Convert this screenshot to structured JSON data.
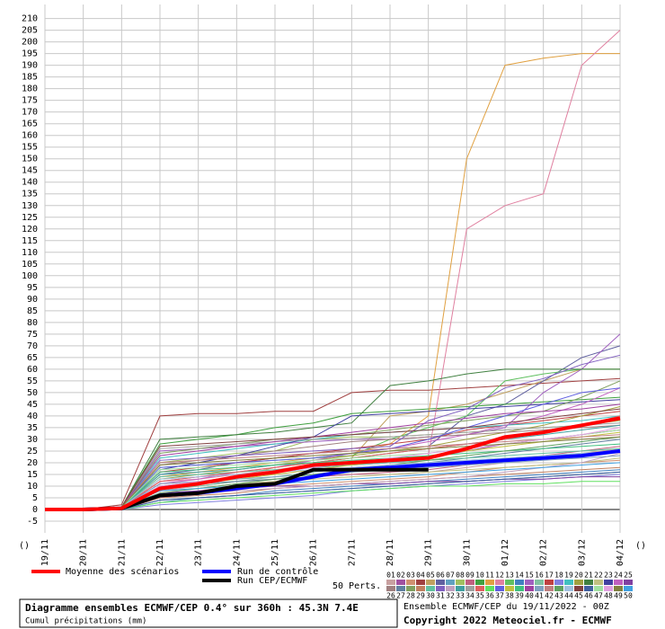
{
  "chart_data": {
    "type": "line",
    "title": "Diagramme ensembles ECMWF/CEP 0.4° sur 360h : 45.3N 7.4E",
    "subtitle": "Cumul précipitations (mm)",
    "source_line": "Ensemble ECMWF/CEP du 19/11/2022 - 00Z",
    "copyright": "Copyright 2022 Meteociel.fr - ECMWF",
    "members_label": "50 Perts.",
    "corner_marks": [
      "()",
      "()"
    ],
    "grid": true,
    "xlim": [
      0,
      360
    ],
    "ylim": [
      -10,
      216
    ],
    "x": [
      0,
      24,
      48,
      72,
      96,
      120,
      144,
      168,
      192,
      216,
      240,
      264,
      288,
      312,
      336,
      360
    ],
    "xticks": [
      {
        "value": 0,
        "label": "19/11"
      },
      {
        "value": 24,
        "label": "20/11"
      },
      {
        "value": 48,
        "label": "21/11"
      },
      {
        "value": 72,
        "label": "22/11"
      },
      {
        "value": 96,
        "label": "23/11"
      },
      {
        "value": 120,
        "label": "24/11"
      },
      {
        "value": 144,
        "label": "25/11"
      },
      {
        "value": 168,
        "label": "26/11"
      },
      {
        "value": 192,
        "label": "27/11"
      },
      {
        "value": 216,
        "label": "28/11"
      },
      {
        "value": 240,
        "label": "29/11"
      },
      {
        "value": 264,
        "label": "30/11"
      },
      {
        "value": 288,
        "label": "01/12"
      },
      {
        "value": 312,
        "label": "02/12"
      },
      {
        "value": 336,
        "label": "03/12"
      },
      {
        "value": 360,
        "label": "04/12"
      }
    ],
    "yticks": [
      -5,
      0,
      5,
      10,
      15,
      20,
      25,
      30,
      35,
      40,
      45,
      50,
      55,
      60,
      65,
      70,
      75,
      80,
      85,
      90,
      95,
      100,
      105,
      110,
      115,
      120,
      125,
      130,
      135,
      140,
      145,
      150,
      155,
      160,
      165,
      170,
      175,
      180,
      185,
      190,
      195,
      200,
      205,
      210
    ],
    "series": [
      {
        "name": "Moyenne des scénarios",
        "color": "#ff0000",
        "values": [
          0,
          0,
          0.5,
          9,
          11,
          14,
          16,
          19,
          20,
          21,
          22,
          26,
          31,
          33,
          36,
          39
        ]
      },
      {
        "name": "Run de contrôle",
        "color": "#0000ff",
        "values": [
          0,
          0,
          0.5,
          6,
          7,
          9,
          11,
          14,
          17,
          18,
          19,
          20,
          21,
          22,
          23,
          25
        ]
      },
      {
        "name": "Run CEP/ECMWF",
        "color": "#000000",
        "values": [
          0,
          0,
          0.5,
          6,
          7,
          10,
          11,
          17,
          17,
          17,
          17,
          null,
          null,
          null,
          null,
          null
        ]
      },
      {
        "name": "01",
        "color": "#c8a0a0",
        "values": [
          0,
          0,
          1,
          8,
          10,
          12,
          13,
          14,
          15,
          15,
          16,
          18,
          20,
          22,
          24,
          26
        ]
      },
      {
        "name": "02",
        "color": "#a050a0",
        "values": [
          0,
          0,
          1,
          12,
          14,
          15,
          16,
          18,
          19,
          20,
          22,
          25,
          28,
          30,
          32,
          34
        ]
      },
      {
        "name": "03",
        "color": "#d09070",
        "values": [
          0,
          0,
          0,
          5,
          7,
          9,
          10,
          11,
          12,
          13,
          14,
          16,
          18,
          19,
          20,
          21
        ]
      },
      {
        "name": "04",
        "color": "#a04040",
        "values": [
          0,
          0,
          2,
          40,
          41,
          41,
          42,
          42,
          50,
          51,
          51,
          52,
          53,
          54,
          55,
          56
        ]
      },
      {
        "name": "05",
        "color": "#c0a060",
        "values": [
          0,
          0,
          1,
          10,
          12,
          14,
          18,
          20,
          22,
          40,
          42,
          45,
          50,
          55,
          60,
          60
        ]
      },
      {
        "name": "06",
        "color": "#6060a0",
        "values": [
          0,
          0,
          1,
          15,
          17,
          20,
          22,
          24,
          25,
          26,
          27,
          40,
          45,
          55,
          65,
          70
        ]
      },
      {
        "name": "07",
        "color": "#60a0c0",
        "values": [
          0,
          0,
          0,
          3,
          5,
          6,
          7,
          8,
          9,
          10,
          11,
          12,
          13,
          14,
          15,
          16
        ]
      },
      {
        "name": "08",
        "color": "#a0c060",
        "values": [
          0,
          0,
          1,
          20,
          22,
          24,
          25,
          30,
          31,
          31,
          32,
          33,
          34,
          35,
          36,
          38
        ]
      },
      {
        "name": "09",
        "color": "#c06080",
        "values": [
          0,
          0,
          1,
          6,
          8,
          10,
          12,
          14,
          15,
          16,
          17,
          19,
          21,
          23,
          25,
          27
        ]
      },
      {
        "name": "10",
        "color": "#40a040",
        "values": [
          0,
          0,
          1,
          28,
          30,
          32,
          35,
          37,
          41,
          42,
          43,
          44,
          45,
          46,
          47,
          48
        ]
      },
      {
        "name": "11",
        "color": "#e0a040",
        "values": [
          0,
          0,
          1,
          14,
          16,
          18,
          20,
          22,
          24,
          28,
          40,
          150,
          190,
          193,
          195,
          195
        ]
      },
      {
        "name": "12",
        "color": "#e080a0",
        "values": [
          0,
          0,
          1,
          12,
          13,
          15,
          17,
          19,
          20,
          21,
          23,
          120,
          130,
          135,
          190,
          205
        ]
      },
      {
        "name": "13",
        "color": "#60c060",
        "values": [
          0,
          0,
          1,
          18,
          19,
          20,
          21,
          22,
          23,
          30,
          35,
          40,
          55,
          58,
          60,
          60
        ]
      },
      {
        "name": "14",
        "color": "#4080c0",
        "values": [
          0,
          0,
          0,
          4,
          5,
          6,
          8,
          9,
          10,
          11,
          12,
          13,
          14,
          15,
          16,
          17
        ]
      },
      {
        "name": "15",
        "color": "#a060c0",
        "values": [
          0,
          0,
          1,
          25,
          26,
          27,
          28,
          29,
          30,
          30,
          31,
          32,
          35,
          50,
          60,
          75
        ]
      },
      {
        "name": "16",
        "color": "#80c0a0",
        "values": [
          0,
          0,
          1,
          9,
          10,
          12,
          14,
          16,
          18,
          19,
          20,
          21,
          22,
          23,
          24,
          25
        ]
      },
      {
        "name": "17",
        "color": "#c04040",
        "values": [
          0,
          0,
          1,
          16,
          18,
          20,
          22,
          24,
          26,
          28,
          30,
          34,
          36,
          38,
          40,
          42
        ]
      },
      {
        "name": "18",
        "color": "#8080e0",
        "values": [
          0,
          0,
          0,
          2,
          3,
          4,
          5,
          6,
          8,
          9,
          10,
          11,
          12,
          13,
          14,
          15
        ]
      },
      {
        "name": "19",
        "color": "#40c0c0",
        "values": [
          0,
          0,
          1,
          22,
          24,
          26,
          28,
          30,
          32,
          33,
          34,
          35,
          36,
          37,
          38,
          40
        ]
      },
      {
        "name": "20",
        "color": "#a0a040",
        "values": [
          0,
          0,
          1,
          13,
          15,
          17,
          19,
          21,
          23,
          25,
          27,
          30,
          33,
          36,
          40,
          44
        ]
      },
      {
        "name": "21",
        "color": "#408040",
        "values": [
          0,
          0,
          1,
          30,
          31,
          32,
          33,
          35,
          37,
          53,
          55,
          58,
          60,
          60,
          60,
          60
        ]
      },
      {
        "name": "22",
        "color": "#c0c080",
        "values": [
          0,
          0,
          1,
          8,
          9,
          11,
          12,
          13,
          14,
          15,
          16,
          17,
          18,
          19,
          20,
          22
        ]
      },
      {
        "name": "23",
        "color": "#4040a0",
        "values": [
          0,
          0,
          1,
          17,
          20,
          23,
          27,
          31,
          40,
          41,
          42,
          43,
          44,
          45,
          46,
          47
        ]
      },
      {
        "name": "24",
        "color": "#c060c0",
        "values": [
          0,
          0,
          1,
          11,
          13,
          16,
          18,
          21,
          24,
          26,
          29,
          32,
          36,
          40,
          45,
          52
        ]
      },
      {
        "name": "25",
        "color": "#8040a0",
        "values": [
          0,
          0,
          1,
          7,
          8,
          9,
          10,
          10,
          11,
          11,
          12,
          12,
          13,
          13,
          14,
          14
        ]
      },
      {
        "name": "26",
        "color": "#a08080",
        "values": [
          0,
          0,
          1,
          19,
          21,
          23,
          25,
          27,
          29,
          30,
          31,
          32,
          33,
          34,
          35,
          36
        ]
      },
      {
        "name": "27",
        "color": "#6080a0",
        "values": [
          0,
          0,
          1,
          10,
          11,
          12,
          13,
          14,
          16,
          18,
          20,
          22,
          24,
          26,
          28,
          30
        ]
      },
      {
        "name": "28",
        "color": "#80a060",
        "values": [
          0,
          0,
          1,
          24,
          26,
          28,
          30,
          31,
          32,
          34,
          36,
          38,
          40,
          42,
          48,
          55
        ]
      },
      {
        "name": "29",
        "color": "#c08060",
        "values": [
          0,
          0,
          0,
          5,
          6,
          7,
          9,
          10,
          11,
          12,
          13,
          14,
          15,
          16,
          17,
          18
        ]
      },
      {
        "name": "30",
        "color": "#60c0a0",
        "values": [
          0,
          0,
          1,
          14,
          15,
          16,
          17,
          18,
          19,
          20,
          21,
          22,
          23,
          24,
          25,
          26
        ]
      },
      {
        "name": "31",
        "color": "#8060c0",
        "values": [
          0,
          0,
          1,
          21,
          22,
          23,
          24,
          25,
          26,
          27,
          38,
          43,
          52,
          56,
          62,
          66
        ]
      },
      {
        "name": "32",
        "color": "#c0a0c0",
        "values": [
          0,
          0,
          1,
          6,
          7,
          8,
          9,
          10,
          11,
          12,
          13,
          14,
          16,
          18,
          20,
          24
        ]
      },
      {
        "name": "33",
        "color": "#40a0a0",
        "values": [
          0,
          0,
          1,
          15,
          16,
          17,
          19,
          20,
          22,
          24,
          26,
          28,
          30,
          32,
          34,
          36
        ]
      },
      {
        "name": "34",
        "color": "#a0a0a0",
        "values": [
          0,
          0,
          1,
          26,
          27,
          28,
          29,
          30,
          30,
          31,
          32,
          33,
          34,
          35,
          36,
          37
        ]
      },
      {
        "name": "35",
        "color": "#e06060",
        "values": [
          0,
          0,
          1,
          12,
          14,
          16,
          18,
          20,
          22,
          24,
          26,
          28,
          30,
          33,
          36,
          40
        ]
      },
      {
        "name": "36",
        "color": "#60e060",
        "values": [
          0,
          0,
          0,
          3,
          4,
          5,
          6,
          7,
          8,
          9,
          10,
          10,
          11,
          11,
          12,
          12
        ]
      },
      {
        "name": "37",
        "color": "#6060e0",
        "values": [
          0,
          0,
          1,
          18,
          19,
          20,
          21,
          22,
          24,
          26,
          30,
          35,
          40,
          45,
          50,
          52
        ]
      },
      {
        "name": "38",
        "color": "#c0c040",
        "values": [
          0,
          0,
          1,
          9,
          11,
          13,
          15,
          17,
          19,
          21,
          23,
          25,
          27,
          29,
          31,
          33
        ]
      },
      {
        "name": "39",
        "color": "#40c080",
        "values": [
          0,
          0,
          1,
          16,
          17,
          18,
          19,
          20,
          21,
          22,
          23,
          24,
          25,
          26,
          27,
          28
        ]
      },
      {
        "name": "40",
        "color": "#a040a0",
        "values": [
          0,
          0,
          1,
          23,
          25,
          27,
          29,
          31,
          33,
          35,
          37,
          39,
          41,
          42,
          43,
          45
        ]
      },
      {
        "name": "41",
        "color": "#80a0c0",
        "values": [
          0,
          0,
          1,
          11,
          12,
          13,
          14,
          15,
          16,
          17,
          18,
          19,
          20,
          21,
          22,
          23
        ]
      },
      {
        "name": "42",
        "color": "#c08080",
        "values": [
          0,
          0,
          1,
          20,
          21,
          22,
          23,
          24,
          25,
          26,
          27,
          28,
          29,
          30,
          31,
          32
        ]
      },
      {
        "name": "43",
        "color": "#60a060",
        "values": [
          0,
          0,
          1,
          7,
          9,
          11,
          13,
          15,
          17,
          19,
          21,
          23,
          25,
          27,
          29,
          31
        ]
      },
      {
        "name": "44",
        "color": "#a0c0e0",
        "values": [
          0,
          0,
          1,
          13,
          14,
          15,
          16,
          17,
          18,
          19,
          20,
          21,
          22,
          23,
          24,
          25
        ]
      },
      {
        "name": "45",
        "color": "#804040",
        "values": [
          0,
          0,
          1,
          27,
          28,
          29,
          30,
          31,
          32,
          33,
          34,
          35,
          37,
          39,
          41,
          43
        ]
      },
      {
        "name": "46",
        "color": "#4060a0",
        "values": [
          0,
          0,
          0,
          4,
          5,
          6,
          7,
          8,
          9,
          10,
          11,
          12,
          13,
          14,
          15,
          16
        ]
      },
      {
        "name": "47",
        "color": "#a0e0a0",
        "values": [
          0,
          0,
          1,
          17,
          18,
          19,
          20,
          21,
          22,
          23,
          24,
          26,
          28,
          30,
          32,
          34
        ]
      },
      {
        "name": "48",
        "color": "#e0a0e0",
        "values": [
          0,
          0,
          1,
          10,
          12,
          14,
          16,
          18,
          20,
          22,
          24,
          26,
          28,
          30,
          32,
          35
        ]
      },
      {
        "name": "49",
        "color": "#808040",
        "values": [
          0,
          0,
          1,
          19,
          20,
          21,
          22,
          23,
          24,
          25,
          26,
          27,
          28,
          29,
          30,
          31
        ]
      },
      {
        "name": "50",
        "color": "#40a0e0",
        "values": [
          0,
          0,
          1,
          8,
          9,
          10,
          11,
          12,
          13,
          14,
          15,
          16,
          17,
          18,
          19,
          20
        ]
      }
    ]
  }
}
